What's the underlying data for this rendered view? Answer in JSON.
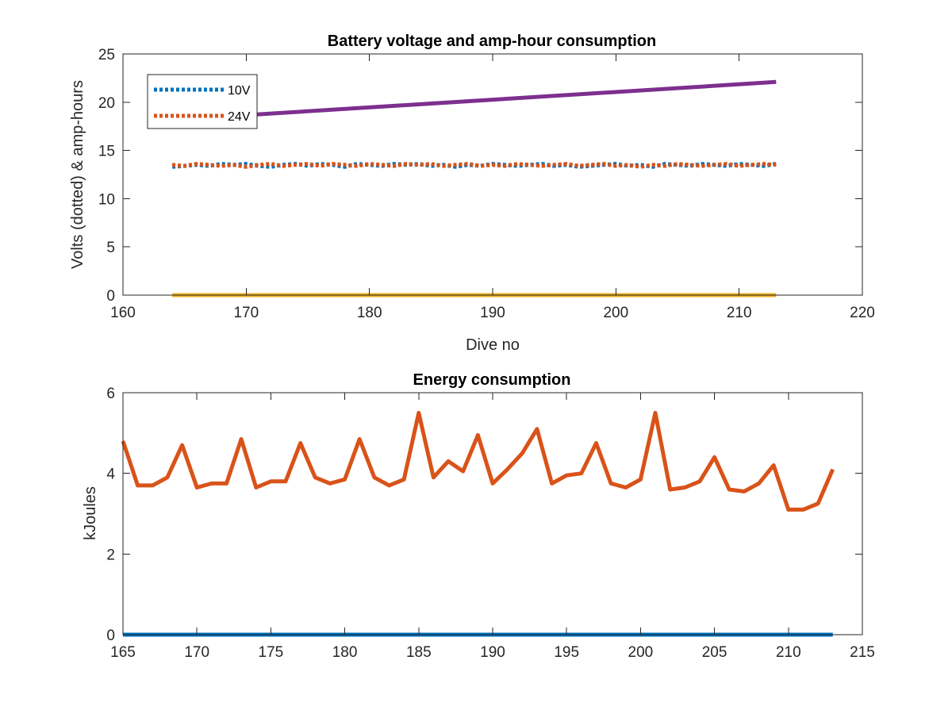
{
  "chart_data": [
    {
      "type": "line",
      "title": "Battery voltage and amp-hour consumption",
      "xlabel": "Dive no",
      "ylabel": "Volts (dotted) & amp-hours",
      "xlim": [
        160,
        220
      ],
      "ylim": [
        0,
        25
      ],
      "xticks": [
        160,
        170,
        180,
        190,
        200,
        210,
        220
      ],
      "yticks": [
        0,
        5,
        10,
        15,
        20,
        25
      ],
      "grid": false,
      "legend": {
        "position": "top-left",
        "entries": [
          "10V",
          "24V"
        ]
      },
      "series": [
        {
          "name": "10V",
          "style": "dotted",
          "color": "#0072BD",
          "x": [
            164,
            165,
            166,
            167,
            168,
            169,
            170,
            171,
            172,
            173,
            174,
            175,
            176,
            177,
            178,
            179,
            180,
            181,
            182,
            183,
            184,
            185,
            186,
            187,
            188,
            189,
            190,
            191,
            192,
            193,
            194,
            195,
            196,
            197,
            198,
            199,
            200,
            201,
            202,
            203,
            204,
            205,
            206,
            207,
            208,
            209,
            210,
            211,
            212,
            213
          ],
          "y": [
            13.3,
            13.4,
            13.5,
            13.4,
            13.6,
            13.5,
            13.6,
            13.4,
            13.3,
            13.5,
            13.6,
            13.4,
            13.6,
            13.5,
            13.3,
            13.6,
            13.5,
            13.4,
            13.6,
            13.5,
            13.6,
            13.4,
            13.5,
            13.3,
            13.5,
            13.4,
            13.6,
            13.5,
            13.4,
            13.5,
            13.6,
            13.4,
            13.5,
            13.3,
            13.4,
            13.5,
            13.6,
            13.4,
            13.5,
            13.3,
            13.6,
            13.5,
            13.4,
            13.6,
            13.5,
            13.4,
            13.6,
            13.5,
            13.4,
            13.6
          ]
        },
        {
          "name": "24V",
          "style": "dotted",
          "color": "#D95319",
          "x": [
            164,
            165,
            166,
            167,
            168,
            169,
            170,
            171,
            172,
            173,
            174,
            175,
            176,
            177,
            178,
            179,
            180,
            181,
            182,
            183,
            184,
            185,
            186,
            187,
            188,
            189,
            190,
            191,
            192,
            193,
            194,
            195,
            196,
            197,
            198,
            199,
            200,
            201,
            202,
            203,
            204,
            205,
            206,
            207,
            208,
            209,
            210,
            211,
            212,
            213
          ],
          "y": [
            13.5,
            13.4,
            13.6,
            13.5,
            13.4,
            13.5,
            13.3,
            13.5,
            13.6,
            13.4,
            13.5,
            13.6,
            13.4,
            13.6,
            13.5,
            13.4,
            13.6,
            13.5,
            13.4,
            13.6,
            13.5,
            13.6,
            13.4,
            13.5,
            13.6,
            13.4,
            13.5,
            13.4,
            13.6,
            13.5,
            13.4,
            13.5,
            13.6,
            13.4,
            13.5,
            13.6,
            13.4,
            13.5,
            13.3,
            13.5,
            13.4,
            13.6,
            13.5,
            13.4,
            13.5,
            13.6,
            13.4,
            13.5,
            13.6,
            13.5
          ]
        },
        {
          "style": "solid",
          "color": "#7E2F8E",
          "x": [
            168,
            213
          ],
          "y": [
            18.5,
            22.1
          ]
        },
        {
          "style": "solid",
          "color": "#EDB120",
          "x": [
            164,
            213
          ],
          "y": [
            0,
            0
          ]
        }
      ]
    },
    {
      "type": "line",
      "title": "Energy consumption",
      "xlabel": "",
      "ylabel": "kJoules",
      "xlim": [
        165,
        215
      ],
      "ylim": [
        0,
        6
      ],
      "xticks": [
        165,
        170,
        175,
        180,
        185,
        190,
        195,
        200,
        205,
        210,
        215
      ],
      "yticks": [
        0,
        2,
        4,
        6
      ],
      "grid": false,
      "series": [
        {
          "style": "solid",
          "color": "#D95319",
          "x": [
            165,
            166,
            167,
            168,
            169,
            170,
            171,
            172,
            173,
            174,
            175,
            176,
            177,
            178,
            179,
            180,
            181,
            182,
            183,
            184,
            185,
            186,
            187,
            188,
            189,
            190,
            191,
            192,
            193,
            194,
            195,
            196,
            197,
            198,
            199,
            200,
            201,
            202,
            203,
            204,
            205,
            206,
            207,
            208,
            209,
            210,
            211,
            212,
            213
          ],
          "y": [
            4.8,
            3.7,
            3.7,
            3.9,
            4.7,
            3.65,
            3.75,
            3.75,
            4.85,
            3.65,
            3.8,
            3.8,
            4.75,
            3.9,
            3.75,
            3.85,
            4.85,
            3.9,
            3.7,
            3.85,
            5.5,
            3.9,
            4.3,
            4.05,
            4.95,
            3.75,
            4.1,
            4.5,
            5.1,
            3.75,
            3.95,
            4.0,
            4.75,
            3.75,
            3.65,
            3.85,
            5.5,
            3.6,
            3.65,
            3.8,
            4.4,
            3.6,
            3.55,
            3.75,
            4.2,
            3.1,
            3.1,
            3.25,
            4.1
          ]
        },
        {
          "style": "solid",
          "color": "#0072BD",
          "x": [
            165,
            213
          ],
          "y": [
            0,
            0
          ]
        }
      ]
    }
  ]
}
